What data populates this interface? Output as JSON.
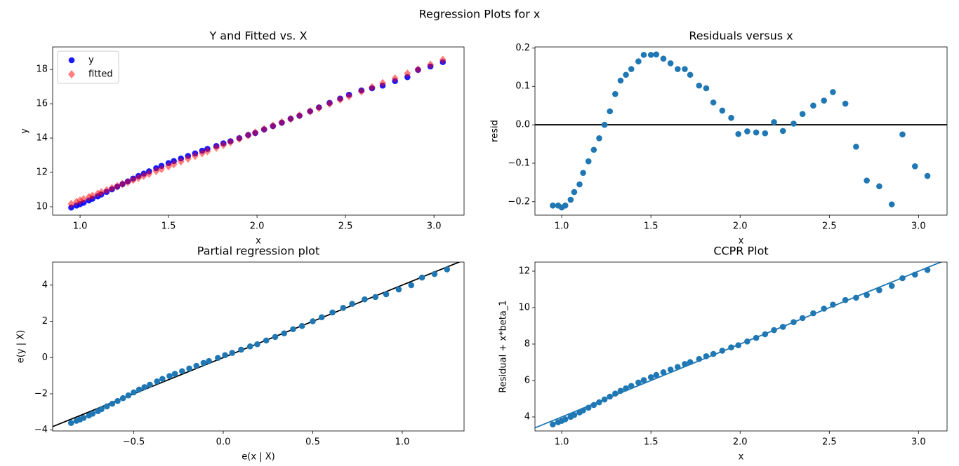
{
  "title": "Regression Plots for x",
  "chart_data": [
    {
      "type": "scatter",
      "title": "Y and Fitted vs. X",
      "xlabel": "x",
      "ylabel": "y",
      "x": [
        0.95,
        0.98,
        1.0,
        1.02,
        1.05,
        1.07,
        1.1,
        1.12,
        1.15,
        1.18,
        1.21,
        1.24,
        1.27,
        1.3,
        1.33,
        1.36,
        1.39,
        1.43,
        1.46,
        1.5,
        1.53,
        1.57,
        1.61,
        1.65,
        1.69,
        1.72,
        1.77,
        1.81,
        1.85,
        1.9,
        1.95,
        1.99,
        2.04,
        2.09,
        2.14,
        2.19,
        2.24,
        2.3,
        2.35,
        2.41,
        2.47,
        2.52,
        2.59,
        2.65,
        2.71,
        2.78,
        2.85,
        2.91,
        2.98,
        3.05
      ],
      "series": [
        {
          "name": "y",
          "color": "#0000ff",
          "marker": "circle",
          "opacity": 0.9,
          "values": [
            9.95,
            10.07,
            10.145,
            10.23,
            10.365,
            10.465,
            10.605,
            10.715,
            10.865,
            11.015,
            11.165,
            11.32,
            11.475,
            11.64,
            11.795,
            11.93,
            12.065,
            12.245,
            12.382,
            12.542,
            12.663,
            12.812,
            12.96,
            13.105,
            13.265,
            13.37,
            13.542,
            13.695,
            13.818,
            13.997,
            14.178,
            14.296,
            14.503,
            14.7,
            14.898,
            15.127,
            15.304,
            15.563,
            15.788,
            16.05,
            16.303,
            16.525,
            16.775,
            16.903,
            17.055,
            17.32,
            17.553,
            17.975,
            18.172,
            18.427
          ]
        },
        {
          "name": "fitted",
          "color": "#ff0000",
          "marker": "diamond",
          "opacity": 0.5,
          "values": [
            10.16,
            10.28,
            10.36,
            10.44,
            10.56,
            10.64,
            10.76,
            10.84,
            10.96,
            11.08,
            11.2,
            11.32,
            11.44,
            11.56,
            11.68,
            11.8,
            11.92,
            12.08,
            12.2,
            12.36,
            12.48,
            12.64,
            12.8,
            12.96,
            13.12,
            13.24,
            13.44,
            13.6,
            13.76,
            13.96,
            14.16,
            14.32,
            14.52,
            14.72,
            14.92,
            15.12,
            15.32,
            15.56,
            15.76,
            16.0,
            16.24,
            16.44,
            16.72,
            16.96,
            17.2,
            17.48,
            17.76,
            18.0,
            18.28,
            18.56
          ]
        }
      ],
      "legend": "upper left",
      "xlim": [
        0.845,
        3.17
      ],
      "ylim": [
        9.51,
        19.31
      ],
      "xticks": [
        {
          "value": 1,
          "label": "1.0"
        },
        1.5,
        {
          "value": 2,
          "label": "2.0"
        },
        2.5,
        {
          "value": 3,
          "label": "3.0"
        }
      ],
      "yticks": [
        10,
        12,
        14,
        16,
        18
      ]
    },
    {
      "type": "scatter",
      "title": "Residuals versus x",
      "xlabel": "x",
      "ylabel": "resid",
      "x": [
        0.95,
        0.98,
        1.0,
        1.02,
        1.05,
        1.07,
        1.1,
        1.12,
        1.15,
        1.18,
        1.21,
        1.24,
        1.27,
        1.3,
        1.33,
        1.36,
        1.39,
        1.43,
        1.46,
        1.5,
        1.53,
        1.57,
        1.61,
        1.65,
        1.69,
        1.72,
        1.77,
        1.81,
        1.85,
        1.9,
        1.95,
        1.99,
        2.04,
        2.09,
        2.14,
        2.19,
        2.24,
        2.3,
        2.35,
        2.41,
        2.47,
        2.52,
        2.59,
        2.65,
        2.71,
        2.78,
        2.85,
        2.91,
        2.98,
        3.05
      ],
      "series": [
        {
          "color": "#1f77b4",
          "marker": "circle",
          "opacity": 1,
          "values": [
            -0.21,
            -0.21,
            -0.215,
            -0.21,
            -0.195,
            -0.175,
            -0.155,
            -0.125,
            -0.095,
            -0.065,
            -0.035,
            0.0,
            0.035,
            0.08,
            0.115,
            0.13,
            0.145,
            0.165,
            0.182,
            0.182,
            0.183,
            0.172,
            0.16,
            0.145,
            0.145,
            0.13,
            0.102,
            0.095,
            0.058,
            0.037,
            0.018,
            -0.024,
            -0.017,
            -0.02,
            -0.022,
            0.007,
            -0.016,
            0.003,
            0.028,
            0.05,
            0.063,
            0.085,
            0.055,
            -0.057,
            -0.145,
            -0.16,
            -0.207,
            -0.025,
            -0.108,
            -0.133
          ]
        }
      ],
      "hline": {
        "y": 0,
        "color": "#000000"
      },
      "xlim": [
        0.85,
        3.16
      ],
      "ylim": [
        -0.235,
        0.2025
      ],
      "xticks": [
        {
          "value": 1,
          "label": "1.0"
        },
        1.5,
        {
          "value": 2,
          "label": "2.0"
        },
        2.5,
        {
          "value": 3,
          "label": "3.0"
        }
      ],
      "yticks": [
        {
          "value": -0.2,
          "label": "−0.2"
        },
        {
          "value": -0.1,
          "label": "−0.1"
        },
        {
          "value": 0,
          "label": "0.0"
        },
        0.1,
        0.2
      ]
    },
    {
      "type": "scatter",
      "title": "Partial regression plot",
      "xlabel": "e(x | X)",
      "ylabel": "e(y | X)",
      "x": [
        -0.85,
        -0.82,
        -0.8,
        -0.78,
        -0.75,
        -0.73,
        -0.7,
        -0.68,
        -0.65,
        -0.62,
        -0.59,
        -0.56,
        -0.53,
        -0.5,
        -0.47,
        -0.44,
        -0.41,
        -0.37,
        -0.34,
        -0.3,
        -0.27,
        -0.23,
        -0.19,
        -0.15,
        -0.11,
        -0.08,
        -0.03,
        0.01,
        0.05,
        0.1,
        0.15,
        0.19,
        0.24,
        0.29,
        0.34,
        0.39,
        0.44,
        0.5,
        0.55,
        0.61,
        0.67,
        0.72,
        0.79,
        0.85,
        0.91,
        0.98,
        1.05,
        1.11,
        1.18,
        1.25
      ],
      "series": [
        {
          "color": "#1f77b4",
          "marker": "circle",
          "opacity": 1,
          "values": [
            -3.61,
            -3.49,
            -3.415,
            -3.33,
            -3.195,
            -3.095,
            -2.955,
            -2.845,
            -2.695,
            -2.545,
            -2.395,
            -2.24,
            -2.085,
            -1.92,
            -1.765,
            -1.63,
            -1.495,
            -1.315,
            -1.178,
            -1.018,
            -0.897,
            -0.748,
            -0.6,
            -0.455,
            -0.295,
            -0.19,
            -0.018,
            0.135,
            0.258,
            0.437,
            0.618,
            0.736,
            0.943,
            1.14,
            1.338,
            1.567,
            1.744,
            2.003,
            2.228,
            2.49,
            2.743,
            2.965,
            3.215,
            3.343,
            3.495,
            3.76,
            3.993,
            4.415,
            4.612,
            4.867
          ]
        }
      ],
      "line": {
        "intercept": 0,
        "slope": 4,
        "color": "#000000"
      },
      "xlim": [
        -0.953,
        1.345
      ],
      "ylim": [
        -4.05,
        5.27
      ],
      "xticks": [
        {
          "value": -0.5,
          "label": "−0.5"
        },
        {
          "value": 0,
          "label": "0.0"
        },
        0.5,
        {
          "value": 1,
          "label": "1.0"
        }
      ],
      "yticks": [
        {
          "value": -4,
          "label": "−4"
        },
        {
          "value": -2,
          "label": "−2"
        },
        0,
        2,
        4
      ]
    },
    {
      "type": "scatter",
      "title": "CCPR Plot",
      "xlabel": "x",
      "ylabel": "Residual + x*beta_1",
      "x": [
        0.95,
        0.98,
        1.0,
        1.02,
        1.05,
        1.07,
        1.1,
        1.12,
        1.15,
        1.18,
        1.21,
        1.24,
        1.27,
        1.3,
        1.33,
        1.36,
        1.39,
        1.43,
        1.46,
        1.5,
        1.53,
        1.57,
        1.61,
        1.65,
        1.69,
        1.72,
        1.77,
        1.81,
        1.85,
        1.9,
        1.95,
        1.99,
        2.04,
        2.09,
        2.14,
        2.19,
        2.24,
        2.3,
        2.35,
        2.41,
        2.47,
        2.52,
        2.59,
        2.65,
        2.71,
        2.78,
        2.85,
        2.91,
        2.98,
        3.05
      ],
      "series": [
        {
          "color": "#1f77b4",
          "marker": "circle",
          "opacity": 1,
          "values": [
            3.59,
            3.71,
            3.785,
            3.87,
            4.005,
            4.105,
            4.245,
            4.355,
            4.505,
            4.655,
            4.805,
            4.96,
            5.115,
            5.28,
            5.435,
            5.57,
            5.705,
            5.885,
            6.022,
            6.182,
            6.303,
            6.452,
            6.6,
            6.745,
            6.905,
            7.01,
            7.182,
            7.335,
            7.458,
            7.637,
            7.818,
            7.936,
            8.143,
            8.34,
            8.538,
            8.767,
            8.944,
            9.203,
            9.428,
            9.69,
            9.943,
            10.165,
            10.415,
            10.543,
            10.695,
            10.96,
            11.193,
            11.615,
            11.812,
            12.067
          ]
        }
      ],
      "line": {
        "intercept": 0,
        "slope": 4,
        "color": "#1f77b4"
      },
      "xlim": [
        0.85,
        3.16
      ],
      "ylim": [
        3.23,
        12.5
      ],
      "xticks": [
        {
          "value": 1,
          "label": "1.0"
        },
        1.5,
        {
          "value": 2,
          "label": "2.0"
        },
        2.5,
        {
          "value": 3,
          "label": "3.0"
        }
      ],
      "yticks": [
        4,
        6,
        8,
        10,
        12
      ]
    }
  ]
}
